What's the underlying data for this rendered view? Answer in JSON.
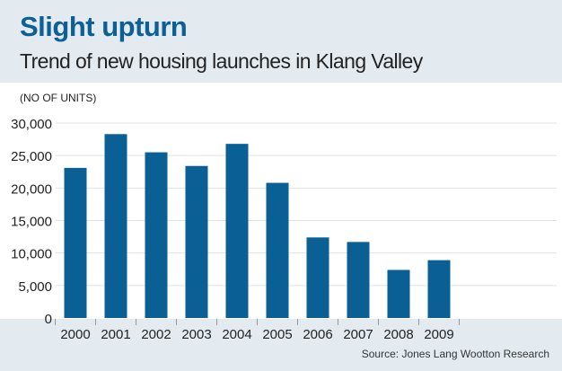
{
  "chart_data": {
    "type": "bar",
    "title": "Slight upturn",
    "subtitle": "Trend of new housing launches in Klang Valley",
    "ylabel": "(NO OF UNITS)",
    "xlabel": "",
    "categories": [
      "2000",
      "2001",
      "2002",
      "2003",
      "2004",
      "2005",
      "2006",
      "2007",
      "2008",
      "2009"
    ],
    "values": [
      23100,
      28300,
      25500,
      23400,
      26800,
      20800,
      12400,
      11700,
      7400,
      8900
    ],
    "ylim": [
      0,
      30000
    ],
    "yticks": [
      0,
      5000,
      10000,
      15000,
      20000,
      25000,
      30000
    ],
    "ytick_labels": [
      "0",
      "5,000",
      "10,000",
      "15,000",
      "20,000",
      "25,000",
      "30,000"
    ],
    "grid": true,
    "bar_color": "#0a6094",
    "source": "Source: Jones Lang Wootton Research"
  }
}
